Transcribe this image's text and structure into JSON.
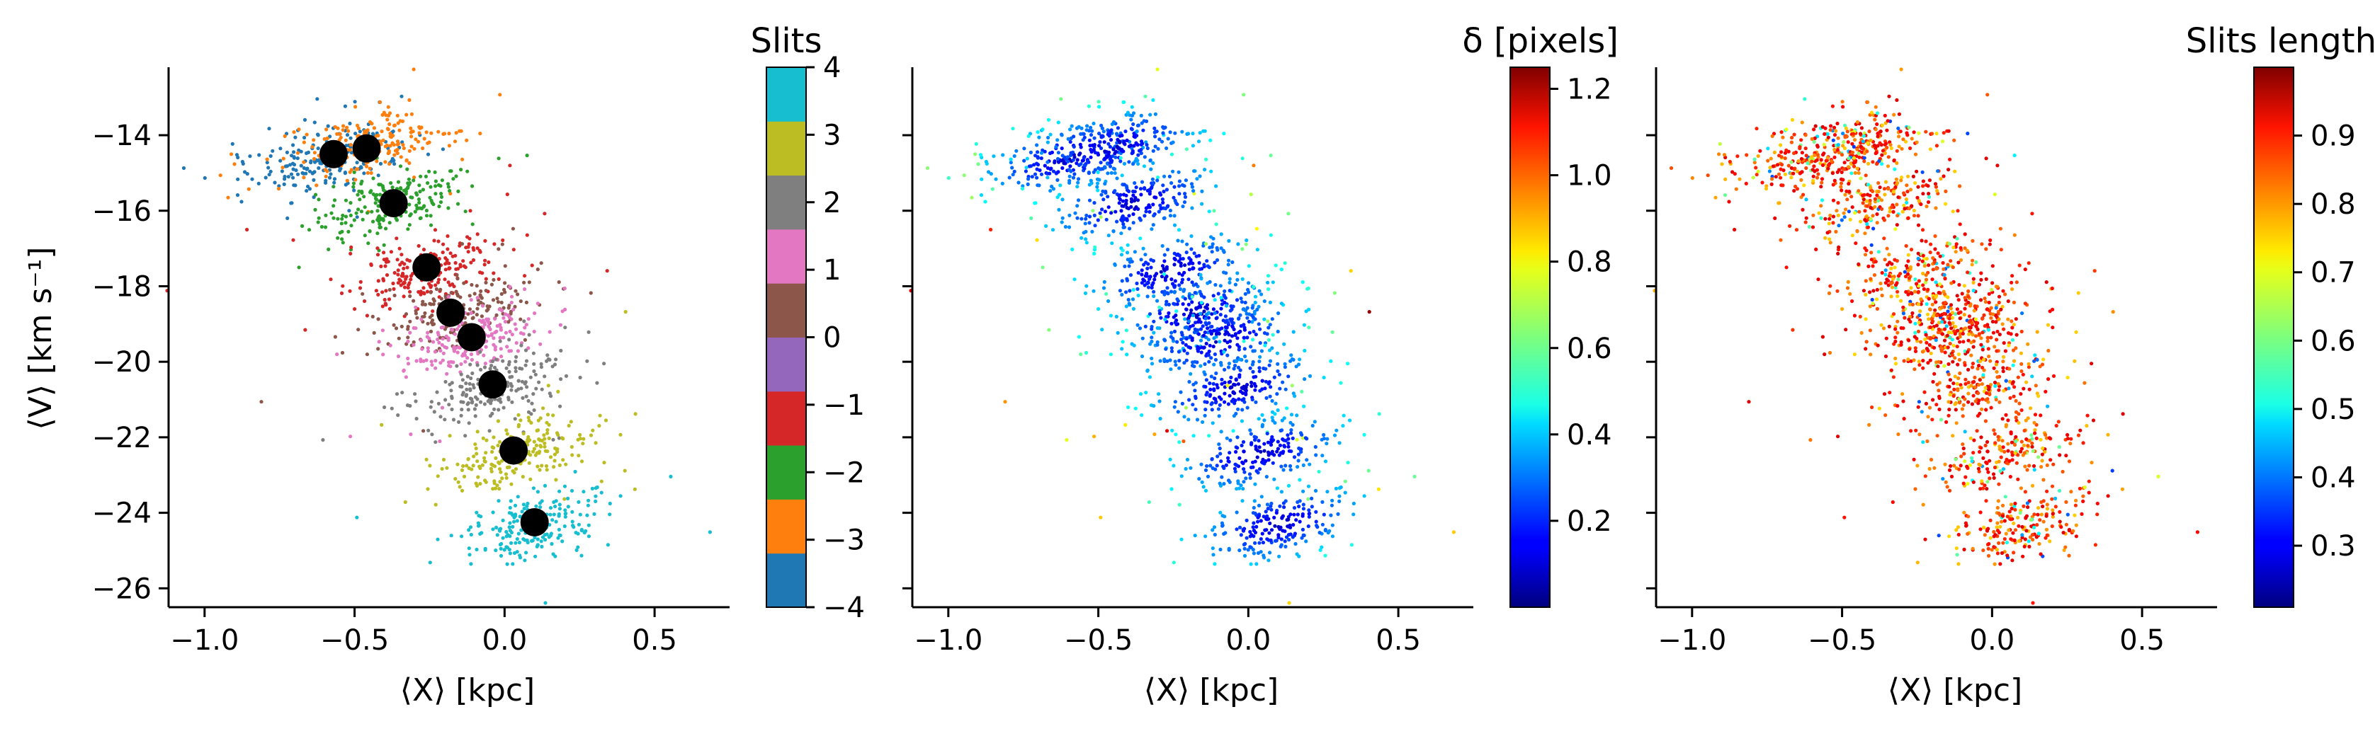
{
  "chart_data": [
    {
      "type": "scatter",
      "panel": "left",
      "xlabel": "⟨X⟩ [kpc]",
      "ylabel": "⟨V⟩ [km s⁻¹]",
      "xlim": [
        -1.12,
        0.75
      ],
      "ylim": [
        -26.5,
        -12.2
      ],
      "x_ticks": [
        -1.0,
        -0.5,
        0.0,
        0.5
      ],
      "x_tick_labels": [
        "−1.0",
        "−0.5",
        "0.0",
        "0.5"
      ],
      "y_ticks": [
        -26,
        -24,
        -22,
        -20,
        -18,
        -16,
        -14
      ],
      "y_tick_labels": [
        "−26",
        "−24",
        "−22",
        "−20",
        "−18",
        "−16",
        "−14"
      ],
      "colorbar": {
        "title": "Slits",
        "type": "discrete",
        "ticks": [
          -4,
          -3,
          -2,
          -1,
          0,
          1,
          2,
          3,
          4
        ],
        "tick_labels": [
          "−4",
          "−3",
          "−2",
          "−1",
          "0",
          "1",
          "2",
          "3",
          "4"
        ],
        "colors": [
          "#1f77b4",
          "#ff7f0e",
          "#2ca02c",
          "#d62728",
          "#9467bd",
          "#8c564b",
          "#e377c2",
          "#7f7f7f",
          "#bcbd22",
          "#17becf"
        ]
      },
      "series": [
        {
          "slit": -4,
          "color": "#1f77b4",
          "center_x": -0.6,
          "center_v": -14.6
        },
        {
          "slit": -3,
          "color": "#ff7f0e",
          "center_x": -0.45,
          "center_v": -14.3
        },
        {
          "slit": -2,
          "color": "#2ca02c",
          "center_x": -0.38,
          "center_v": -15.8
        },
        {
          "slit": -1,
          "color": "#d62728",
          "center_x": -0.26,
          "center_v": -17.6
        },
        {
          "slit": 0,
          "color": "#8c564b",
          "center_x": -0.18,
          "center_v": -18.7
        },
        {
          "slit": 1,
          "color": "#e377c2",
          "center_x": -0.1,
          "center_v": -19.4
        },
        {
          "slit": 2,
          "color": "#7f7f7f",
          "center_x": -0.04,
          "center_v": -20.7
        },
        {
          "slit": 3,
          "color": "#bcbd22",
          "center_x": 0.04,
          "center_v": -22.4
        },
        {
          "slit": 4,
          "color": "#17becf",
          "center_x": 0.1,
          "center_v": -24.3
        }
      ],
      "centroids": {
        "color": "#000000",
        "x": [
          -0.57,
          -0.46,
          -0.37,
          -0.26,
          -0.18,
          -0.11,
          -0.04,
          0.03,
          0.1
        ],
        "v": [
          -14.5,
          -14.35,
          -15.8,
          -17.5,
          -18.7,
          -19.35,
          -20.6,
          -22.35,
          -24.25
        ]
      }
    },
    {
      "type": "scatter",
      "panel": "middle",
      "xlabel": "⟨X⟩ [kpc]",
      "xlim": [
        -1.12,
        0.75
      ],
      "ylim": [
        -26.5,
        -12.2
      ],
      "x_ticks": [
        -1.0,
        -0.5,
        0.0,
        0.5
      ],
      "x_tick_labels": [
        "−1.0",
        "−0.5",
        "0.0",
        "0.5"
      ],
      "colorbar": {
        "title": "δ [pixels]",
        "colormap": "jet",
        "range": [
          0.0,
          1.25
        ],
        "ticks": [
          0.2,
          0.4,
          0.6,
          0.8,
          1.0,
          1.2
        ],
        "tick_labels": [
          "0.2",
          "0.4",
          "0.6",
          "0.8",
          "1.0",
          "1.2"
        ]
      }
    },
    {
      "type": "scatter",
      "panel": "right",
      "xlabel": "⟨X⟩ [kpc]",
      "xlim": [
        -1.12,
        0.75
      ],
      "ylim": [
        -26.5,
        -12.2
      ],
      "x_ticks": [
        -1.0,
        -0.5,
        0.0,
        0.5
      ],
      "x_tick_labels": [
        "−1.0",
        "−0.5",
        "0.0",
        "0.5"
      ],
      "colorbar": {
        "title": "Slits length",
        "colormap": "jet",
        "range": [
          0.21,
          1.0
        ],
        "ticks": [
          0.3,
          0.4,
          0.5,
          0.6,
          0.7,
          0.8,
          0.9
        ],
        "tick_labels": [
          "0.3",
          "0.4",
          "0.5",
          "0.6",
          "0.7",
          "0.8",
          "0.9"
        ]
      }
    }
  ]
}
